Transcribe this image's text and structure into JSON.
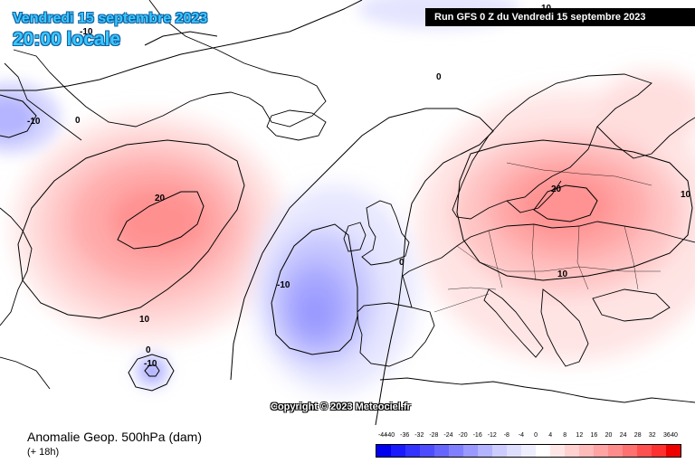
{
  "header": {
    "date_title": "Vendredi 15 septembre 2023",
    "time_title": "20:00 locale",
    "run_banner": "Run GFS 0 Z du Vendredi 15 septembre 2023"
  },
  "footer": {
    "param_title": "Anomalie Geop. 500hPa (dam)",
    "lead_time": "(+ 18h)",
    "copyright": "Copyright © 2023 Meteociel.fr"
  },
  "legend": {
    "labels": [
      "-44",
      "-40",
      "-36",
      "-32",
      "-28",
      "-24",
      "-20",
      "-16",
      "-12",
      "-8",
      "-4",
      "0",
      "4",
      "8",
      "12",
      "16",
      "20",
      "24",
      "28",
      "32",
      "36",
      "40"
    ],
    "colors": [
      "#0000ee",
      "#1a1aff",
      "#3333ff",
      "#4d4dff",
      "#6666ff",
      "#8080ff",
      "#9999ff",
      "#b3b3ff",
      "#ccccff",
      "#dedeff",
      "#eeeeff",
      "#ffffff",
      "#ffe6e6",
      "#ffd1d1",
      "#ffbaba",
      "#ffa3a3",
      "#ff8c8c",
      "#ff7070",
      "#ff5050",
      "#ff3030",
      "#ee0000"
    ]
  },
  "map": {
    "contour_labels": [
      "-10",
      "0",
      "-10",
      "20",
      "10",
      "0",
      "-10",
      "0",
      "-10",
      "0",
      "20",
      "10",
      "10",
      "10"
    ],
    "colors": {
      "positive": "#ff6b6b",
      "negative": "#6b6bff",
      "coast": "#000000",
      "contour": "#000000"
    }
  }
}
